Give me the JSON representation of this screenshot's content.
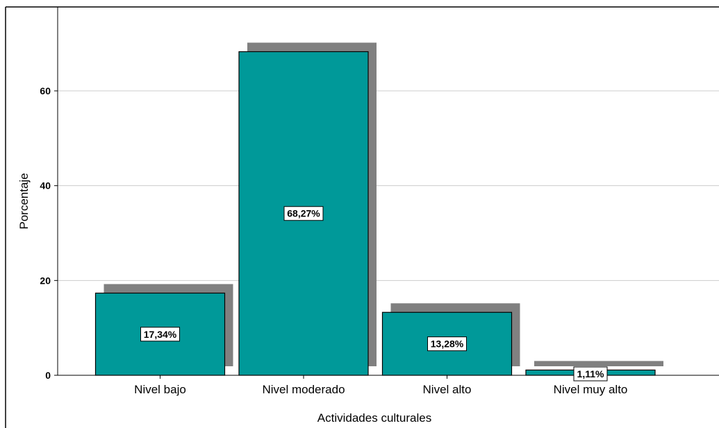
{
  "chart_data": {
    "type": "bar",
    "title": "",
    "xlabel": "Actividades culturales",
    "ylabel": "Porcentaje",
    "categories": [
      "Nivel bajo",
      "Nivel moderado",
      "Nivel alto",
      "Nivel muy alto"
    ],
    "values": [
      17.34,
      68.27,
      13.28,
      1.11
    ],
    "data_labels": [
      "17,34%",
      "68,27%",
      "13,28%",
      "1,11%"
    ],
    "ylim": [
      0,
      75
    ],
    "yticks": [
      0,
      20,
      40,
      60
    ],
    "ytick_labels": [
      "0",
      "20",
      "40",
      "60"
    ],
    "grid": true,
    "legend": "none",
    "colors": {
      "bar": "#009999",
      "shadow": "#808080",
      "grid": "#cccccc",
      "border": "#000000"
    }
  }
}
